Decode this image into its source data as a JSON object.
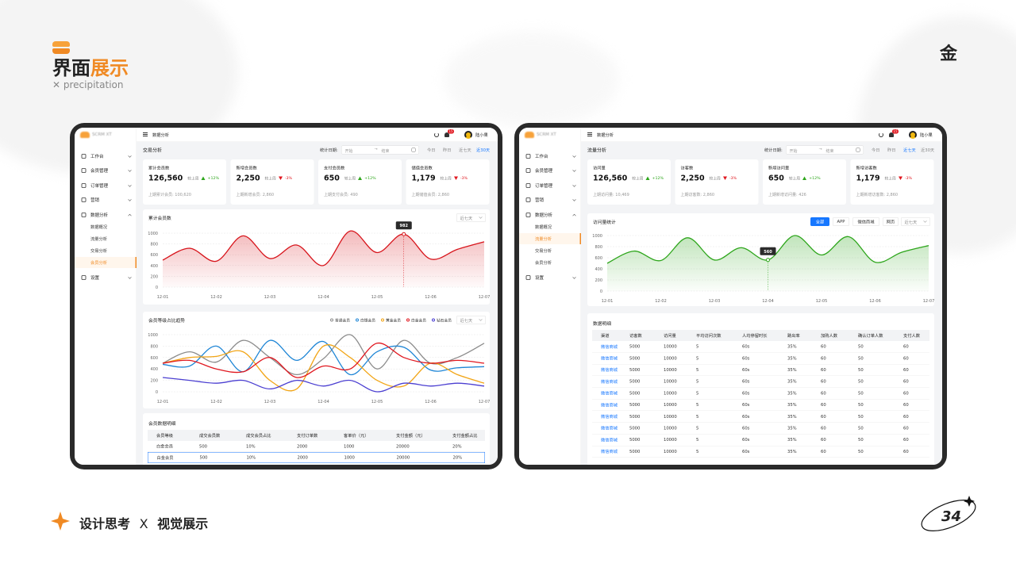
{
  "header": {
    "title_a": "界面",
    "title_b": "展示",
    "subtitle": "precipitation",
    "logo": "金"
  },
  "footer": {
    "left": "设计思考",
    "sep": "X",
    "right": "视觉展示",
    "page": "34"
  },
  "screens": [
    {
      "brand": "SCRM XT",
      "topbar_title": "数据分析",
      "badge": "15",
      "user": "陆小果",
      "nav": [
        {
          "label": "工作台"
        },
        {
          "label": "会员管理"
        },
        {
          "label": "订单管理"
        },
        {
          "label": "营销"
        },
        {
          "label": "数据分析",
          "children": [
            "数据概况",
            "流量分析",
            "交易分析",
            "会员分析"
          ]
        },
        {
          "label": "设置"
        }
      ],
      "active_child": 3,
      "page_title": "交易分析",
      "date_label": "统计日期:",
      "start": "开始",
      "arrow": "→",
      "end": "结束",
      "ranges": [
        "今日",
        "昨日",
        "近七天",
        "近30天"
      ],
      "active_range": 3,
      "cards": [
        {
          "title": "累计会员数",
          "value": "126,560",
          "compare": "较上周",
          "change": "+12%",
          "dir": "up",
          "prev": "上期累计会员: 100,620"
        },
        {
          "title": "新增会员数",
          "value": "2,250",
          "compare": "较上周",
          "change": "-3%",
          "dir": "down",
          "prev": "上期新增会员: 2,860"
        },
        {
          "title": "支付会员数",
          "value": "650",
          "compare": "较上周",
          "change": "+12%",
          "dir": "up",
          "prev": "上期支付会员: 490"
        },
        {
          "title": "储值会员数",
          "value": "1,179",
          "compare": "较上周",
          "change": "-3%",
          "dir": "down",
          "prev": "上期储值会员: 2,860"
        }
      ],
      "table": {
        "title": "会员数据明细",
        "columns": [
          "会员等级",
          "成交会员数",
          "成交会员占比",
          "支付订单数",
          "客单价（元）",
          "支付金额（元）",
          "支付金额占比"
        ],
        "rows": [
          [
            "白金会员",
            "500",
            "10%",
            "2000",
            "1000",
            "20000",
            "20%"
          ],
          [
            "白金会员",
            "500",
            "10%",
            "2000",
            "1000",
            "20000",
            "20%"
          ]
        ],
        "highlight_row": 1
      }
    },
    {
      "brand": "SCRM XT",
      "topbar_title": "数据分析",
      "badge": "15",
      "user": "陆小果",
      "nav": [
        {
          "label": "工作台"
        },
        {
          "label": "会员管理"
        },
        {
          "label": "订单管理"
        },
        {
          "label": "营销"
        },
        {
          "label": "数据分析",
          "children": [
            "数据概况",
            "流量分析",
            "交易分析",
            "会员分析"
          ]
        },
        {
          "label": "设置"
        }
      ],
      "active_child": 1,
      "page_title": "流量分析",
      "date_label": "统计日期:",
      "start": "开始",
      "arrow": "→",
      "end": "结束",
      "ranges": [
        "今日",
        "昨日",
        "近七天",
        "近30天"
      ],
      "active_range": 2,
      "cards": [
        {
          "title": "访问量",
          "value": "126,560",
          "compare": "较上周",
          "change": "+12%",
          "dir": "up",
          "prev": "上期访问量: 10,469"
        },
        {
          "title": "访客数",
          "value": "2,250",
          "compare": "较上周",
          "change": "-3%",
          "dir": "down",
          "prev": "上期访客数: 2,860"
        },
        {
          "title": "新增访问量",
          "value": "650",
          "compare": "较上周",
          "change": "+12%",
          "dir": "up",
          "prev": "上期新增访问量: 426"
        },
        {
          "title": "新增访客数",
          "value": "1,179",
          "compare": "较上周",
          "change": "-3%",
          "dir": "down",
          "prev": "上期新增访客数: 2,860"
        }
      ],
      "table": {
        "title": "数据明细",
        "columns": [
          "渠道",
          "访客数",
          "访问量",
          "平均访问次数",
          "人均停留时长",
          "跳出率",
          "加购人数",
          "确认订单人数",
          "支付人数"
        ],
        "rows": [
          [
            "微信商城",
            "5000",
            "10000",
            "5",
            "60s",
            "35%",
            "60",
            "50",
            "60"
          ],
          [
            "微信商城",
            "5000",
            "10000",
            "5",
            "60s",
            "35%",
            "60",
            "50",
            "60"
          ],
          [
            "微信商城",
            "5000",
            "10000",
            "5",
            "60s",
            "35%",
            "60",
            "50",
            "60"
          ],
          [
            "微信商城",
            "5000",
            "10000",
            "5",
            "60s",
            "35%",
            "60",
            "50",
            "60"
          ],
          [
            "微信商城",
            "5000",
            "10000",
            "5",
            "60s",
            "35%",
            "60",
            "50",
            "60"
          ],
          [
            "微信商城",
            "5000",
            "10000",
            "5",
            "60s",
            "35%",
            "60",
            "50",
            "60"
          ],
          [
            "微信商城",
            "5000",
            "10000",
            "5",
            "60s",
            "35%",
            "60",
            "50",
            "60"
          ],
          [
            "微信商城",
            "5000",
            "10000",
            "5",
            "60s",
            "35%",
            "60",
            "50",
            "60"
          ],
          [
            "微信商城",
            "5000",
            "10000",
            "5",
            "60s",
            "35%",
            "60",
            "50",
            "60"
          ],
          [
            "微信商城",
            "5000",
            "10000",
            "5",
            "60s",
            "35%",
            "60",
            "50",
            "60"
          ]
        ]
      }
    }
  ],
  "chart_data": [
    {
      "type": "line",
      "title": "累计会员数",
      "dropdown": "近七天",
      "area": true,
      "color": "#d7141b",
      "categories": [
        "12-01",
        null,
        "12-02",
        null,
        "12-03",
        null,
        "12-04",
        null,
        "12-05",
        null,
        "12-06",
        null,
        "12-07"
      ],
      "values": [
        500,
        720,
        480,
        950,
        530,
        780,
        400,
        1040,
        640,
        982,
        520,
        700,
        840
      ],
      "tooltip_index": 9,
      "ylim": [
        0,
        1000
      ],
      "yticks": [
        0,
        200,
        400,
        600,
        800,
        1000
      ],
      "grid": true
    },
    {
      "type": "line",
      "title": "会员等级占比趋势",
      "dropdown": "近七天",
      "area": false,
      "categories": [
        "12-01",
        null,
        "12-02",
        null,
        "12-03",
        null,
        "12-04",
        null,
        "12-05",
        null,
        "12-06",
        null,
        "12-07"
      ],
      "series": [
        {
          "name": "普通会员",
          "color": "#8c8c8c",
          "values": [
            500,
            700,
            520,
            900,
            600,
            300,
            580,
            1000,
            400,
            900,
            500,
            600,
            850
          ]
        },
        {
          "name": "白银会员",
          "color": "#1f86d6",
          "values": [
            480,
            450,
            800,
            350,
            900,
            550,
            880,
            300,
            700,
            780,
            380,
            420,
            440
          ]
        },
        {
          "name": "黄金会员",
          "color": "#f2a516",
          "values": [
            500,
            600,
            620,
            700,
            200,
            50,
            800,
            600,
            200,
            100,
            500,
            300,
            150
          ]
        },
        {
          "name": "白金会员",
          "color": "#e0161e",
          "values": [
            500,
            550,
            400,
            350,
            600,
            250,
            450,
            400,
            850,
            600,
            500,
            550,
            500
          ]
        },
        {
          "name": "钻石会员",
          "color": "#4b3fd1",
          "values": [
            250,
            200,
            150,
            200,
            50,
            200,
            100,
            200,
            0,
            150,
            100,
            150,
            100
          ]
        }
      ],
      "ylim": [
        0,
        1000
      ],
      "yticks": [
        0,
        200,
        400,
        600,
        800,
        1000
      ],
      "grid": true
    },
    {
      "type": "line",
      "title": "访问量统计",
      "dropdown": "近七天",
      "area": true,
      "color": "#2ea61c",
      "filters": [
        "全部",
        "APP",
        "微信商城",
        "网页"
      ],
      "active_filter": 0,
      "categories": [
        "12-01",
        null,
        "12-02",
        null,
        "12-03",
        null,
        "12-04",
        null,
        "12-05",
        null,
        "12-06",
        null,
        "12-07"
      ],
      "values": [
        500,
        720,
        550,
        960,
        560,
        780,
        560,
        1000,
        650,
        980,
        520,
        700,
        820
      ],
      "tooltip_index": 6,
      "ylim": [
        0,
        1000
      ],
      "yticks": [
        0,
        200,
        400,
        600,
        800,
        1000
      ],
      "grid": true
    }
  ]
}
